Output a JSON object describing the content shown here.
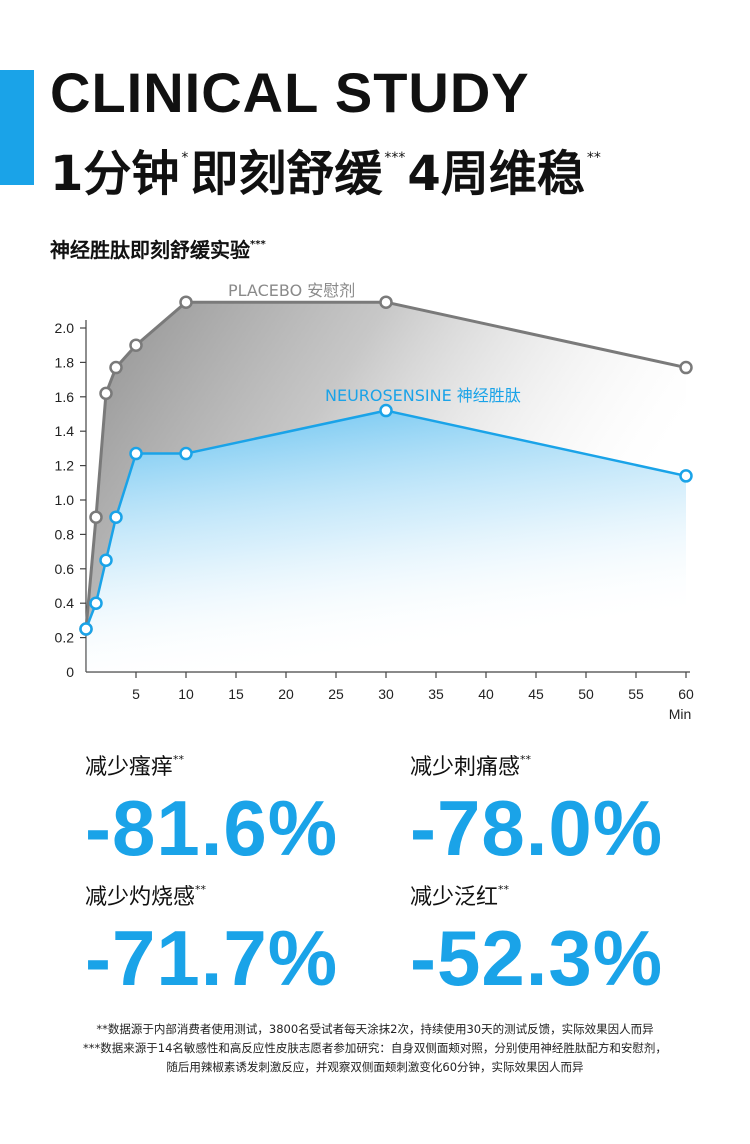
{
  "header": {
    "title_en": "CLINICAL STUDY",
    "title_cn_part1": "1分钟",
    "title_cn_mark1": "*",
    "title_cn_part2": "即刻舒缓",
    "title_cn_mark2": "***",
    "title_cn_part3": "4周维稳",
    "title_cn_mark3": "**"
  },
  "chart_heading": {
    "text": "神经胜肽即刻舒缓实验",
    "mark": "***"
  },
  "colors": {
    "accent": "#1aa3e8",
    "placebo": "#7a7a7a",
    "axis": "#444444"
  },
  "chart_data": {
    "type": "line",
    "x_unit": "Min",
    "xlim": [
      0,
      60
    ],
    "ylim": [
      0,
      2.0
    ],
    "x_ticks": [
      5,
      10,
      15,
      20,
      25,
      30,
      35,
      40,
      45,
      50,
      55,
      60
    ],
    "x_tick_labels": [
      "5",
      "10",
      "15",
      "20",
      "25",
      "30",
      "35",
      "40",
      "45",
      "50",
      "55",
      "60"
    ],
    "y_ticks": [
      0,
      0.2,
      0.4,
      0.6,
      0.8,
      1.0,
      1.2,
      1.4,
      1.6,
      1.8,
      2.0
    ],
    "y_tick_labels": [
      "0",
      "0.2",
      "0.4",
      "0.6",
      "0.8",
      "1.0",
      "1.2",
      "1.4",
      "1.6",
      "1.8",
      "2.0"
    ],
    "grid": false,
    "series": [
      {
        "name": "PLACEBO 安慰剂",
        "color": "#7a7a7a",
        "x": [
          0,
          1,
          2,
          3,
          5,
          10,
          30,
          60
        ],
        "y": [
          0.25,
          0.9,
          1.62,
          1.77,
          1.9,
          2.15,
          2.15,
          1.77
        ]
      },
      {
        "name": "NEUROSENSINE 神经胜肽",
        "color": "#1aa3e8",
        "x": [
          0,
          1,
          2,
          3,
          5,
          10,
          30,
          60
        ],
        "y": [
          0.25,
          0.4,
          0.65,
          0.9,
          1.27,
          1.27,
          1.52,
          1.14
        ]
      }
    ]
  },
  "stats": [
    {
      "label": "减少瘙痒",
      "mark": "**",
      "value": "-81.6%"
    },
    {
      "label": "减少刺痛感",
      "mark": "**",
      "value": "-78.0%"
    },
    {
      "label": "减少灼烧感",
      "mark": "**",
      "value": "-71.7%"
    },
    {
      "label": "减少泛红",
      "mark": "**",
      "value": "-52.3%"
    }
  ],
  "footnotes": [
    "**数据源于内部消费者使用测试，3800名受试者每天涂抹2次，持续使用30天的测试反馈，实际效果因人而异",
    "***数据来源于14名敏感性和高反应性皮肤志愿者参加研究：自身双侧面颊对照，分别使用神经胜肽配方和安慰剂，",
    "随后用辣椒素诱发刺激反应，并观察双侧面颊刺激变化60分钟，实际效果因人而异"
  ]
}
